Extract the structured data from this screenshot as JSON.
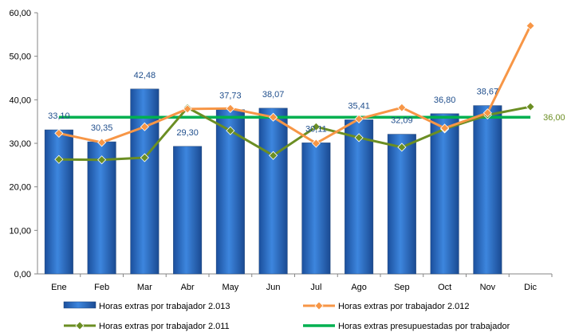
{
  "chart_data": {
    "type": "bar",
    "categories": [
      "Ene",
      "Feb",
      "Mar",
      "Abr",
      "May",
      "Jun",
      "Jul",
      "Ago",
      "Sep",
      "Oct",
      "Nov",
      "Dic"
    ],
    "ylim": [
      0,
      60
    ],
    "yticks": [
      "0,00",
      "10,00",
      "20,00",
      "30,00",
      "40,00",
      "50,00",
      "60,00"
    ],
    "grid": false,
    "legend_position": "bottom",
    "bar_series": {
      "name": "Horas extras por trabajador 2.013",
      "color": "#2e6fc9",
      "values": [
        33.1,
        30.35,
        42.48,
        29.3,
        37.73,
        38.07,
        30.11,
        35.41,
        32.09,
        36.8,
        38.67,
        null
      ],
      "labels": [
        "33,10",
        "30,35",
        "42,48",
        "29,30",
        "37,73",
        "38,07",
        "30,11",
        "35,41",
        "32,09",
        "36,80",
        "38,67",
        ""
      ]
    },
    "line_series": [
      {
        "name": "Horas extras por trabajador 2.012",
        "color": "#f79646",
        "marker": "diamond",
        "values": [
          32.3,
          30.2,
          33.8,
          37.9,
          38.0,
          36.0,
          30.0,
          35.6,
          38.2,
          33.5,
          37.0,
          57.0
        ]
      },
      {
        "name": "Horas extras por trabajador 2.011",
        "color": "#6b8e23",
        "marker": "diamond",
        "values": [
          26.3,
          26.2,
          26.7,
          38.2,
          32.9,
          27.2,
          33.8,
          31.3,
          29.1,
          33.3,
          36.5,
          38.4
        ]
      }
    ],
    "reference_line": {
      "name": "Horas extras presupuestadas por trabajador",
      "color": "#00b050",
      "value": 36.0,
      "label": "36,00"
    }
  }
}
